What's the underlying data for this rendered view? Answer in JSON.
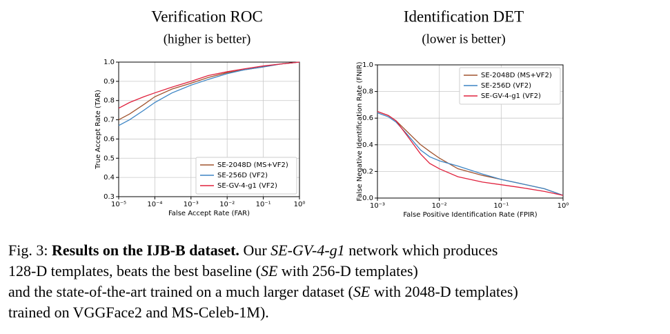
{
  "chart_data": [
    {
      "type": "line",
      "title": "Verification ROC",
      "subtitle": "(higher is better)",
      "x_label": "False Accept Rate (FAR)",
      "y_label": "True Accept Rate (TAR)",
      "xscale": "log",
      "xlim": [
        1e-05,
        1
      ],
      "xticks": [
        {
          "value": 1e-05,
          "label": "10⁻⁵"
        },
        {
          "value": 0.0001,
          "label": "10⁻⁴"
        },
        {
          "value": 0.001,
          "label": "10⁻³"
        },
        {
          "value": 0.01,
          "label": "10⁻²"
        },
        {
          "value": 0.1,
          "label": "10⁻¹"
        },
        {
          "value": 1,
          "label": "10⁰"
        }
      ],
      "ylim": [
        0.3,
        1.0
      ],
      "yticks": [
        0.3,
        0.4,
        0.5,
        0.6,
        0.7,
        0.8,
        0.9,
        {
          "value": 1,
          "label": "1.0"
        }
      ],
      "grid": true,
      "legend": "lower right",
      "x": [
        1e-05,
        2e-05,
        5e-05,
        0.0001,
        0.0003,
        0.001,
        0.003,
        0.01,
        0.03,
        0.1,
        0.3,
        1
      ],
      "series": [
        {
          "name": "SE-2048D (MS+VF2)",
          "color": "#a0522d",
          "values": [
            0.7,
            0.73,
            0.78,
            0.82,
            0.86,
            0.89,
            0.92,
            0.945,
            0.96,
            0.975,
            0.99,
            1.0
          ]
        },
        {
          "name": "SE-256D (VF2)",
          "color": "#3b84c4",
          "values": [
            0.67,
            0.7,
            0.75,
            0.79,
            0.84,
            0.88,
            0.91,
            0.94,
            0.96,
            0.975,
            0.99,
            1.0
          ]
        },
        {
          "name": "SE-GV-4-g1 (VF2)",
          "color": "#e0203c",
          "values": [
            0.76,
            0.79,
            0.82,
            0.84,
            0.87,
            0.9,
            0.93,
            0.95,
            0.965,
            0.98,
            0.99,
            1.0
          ]
        }
      ]
    },
    {
      "type": "line",
      "title": "Identification DET",
      "subtitle": "(lower is better)",
      "x_label": "False Positive Identification Rate (FPIR)",
      "y_label": "False Negative Identification Rate (FNIR)",
      "xscale": "log",
      "xlim": [
        0.001,
        1
      ],
      "xticks": [
        {
          "value": 0.001,
          "label": "10⁻³"
        },
        {
          "value": 0.01,
          "label": "10⁻²"
        },
        {
          "value": 0.1,
          "label": "10⁻¹"
        },
        {
          "value": 1,
          "label": "10⁰"
        }
      ],
      "ylim": [
        0,
        1
      ],
      "yticks": [
        {
          "value": 0,
          "label": "0.0"
        },
        0.2,
        0.4,
        0.6,
        0.8,
        {
          "value": 1,
          "label": "1.0"
        }
      ],
      "grid": true,
      "legend": "upper right",
      "x": [
        0.001,
        0.0015,
        0.002,
        0.003,
        0.005,
        0.007,
        0.01,
        0.02,
        0.05,
        0.1,
        0.2,
        0.5,
        1
      ],
      "series": [
        {
          "name": "SE-2048D (MS+VF2)",
          "color": "#a0522d",
          "values": [
            0.65,
            0.62,
            0.58,
            0.5,
            0.4,
            0.35,
            0.3,
            0.22,
            0.17,
            0.14,
            0.11,
            0.07,
            0.02
          ]
        },
        {
          "name": "SE-256D (VF2)",
          "color": "#3b84c4",
          "values": [
            0.64,
            0.61,
            0.57,
            0.48,
            0.36,
            0.31,
            0.28,
            0.24,
            0.18,
            0.14,
            0.11,
            0.07,
            0.02
          ]
        },
        {
          "name": "SE-GV-4-g1 (VF2)",
          "color": "#e0203c",
          "values": [
            0.65,
            0.62,
            0.58,
            0.47,
            0.33,
            0.26,
            0.22,
            0.16,
            0.12,
            0.1,
            0.08,
            0.05,
            0.02
          ]
        }
      ]
    }
  ],
  "caption": {
    "label": "Fig. 3:",
    "heading": "Results on the IJB-B dataset.",
    "parts": [
      "Our ",
      "SE-GV-4-g1",
      " network which produces",
      "128-D templates, beats the best baseline (",
      "SE",
      " with 256-D templates)",
      "and the state-of-the-art trained on a much larger dataset (",
      "SE",
      " with 2048-D templates)",
      "trained on VGGFace2 and MS-Celeb-1M)."
    ]
  }
}
